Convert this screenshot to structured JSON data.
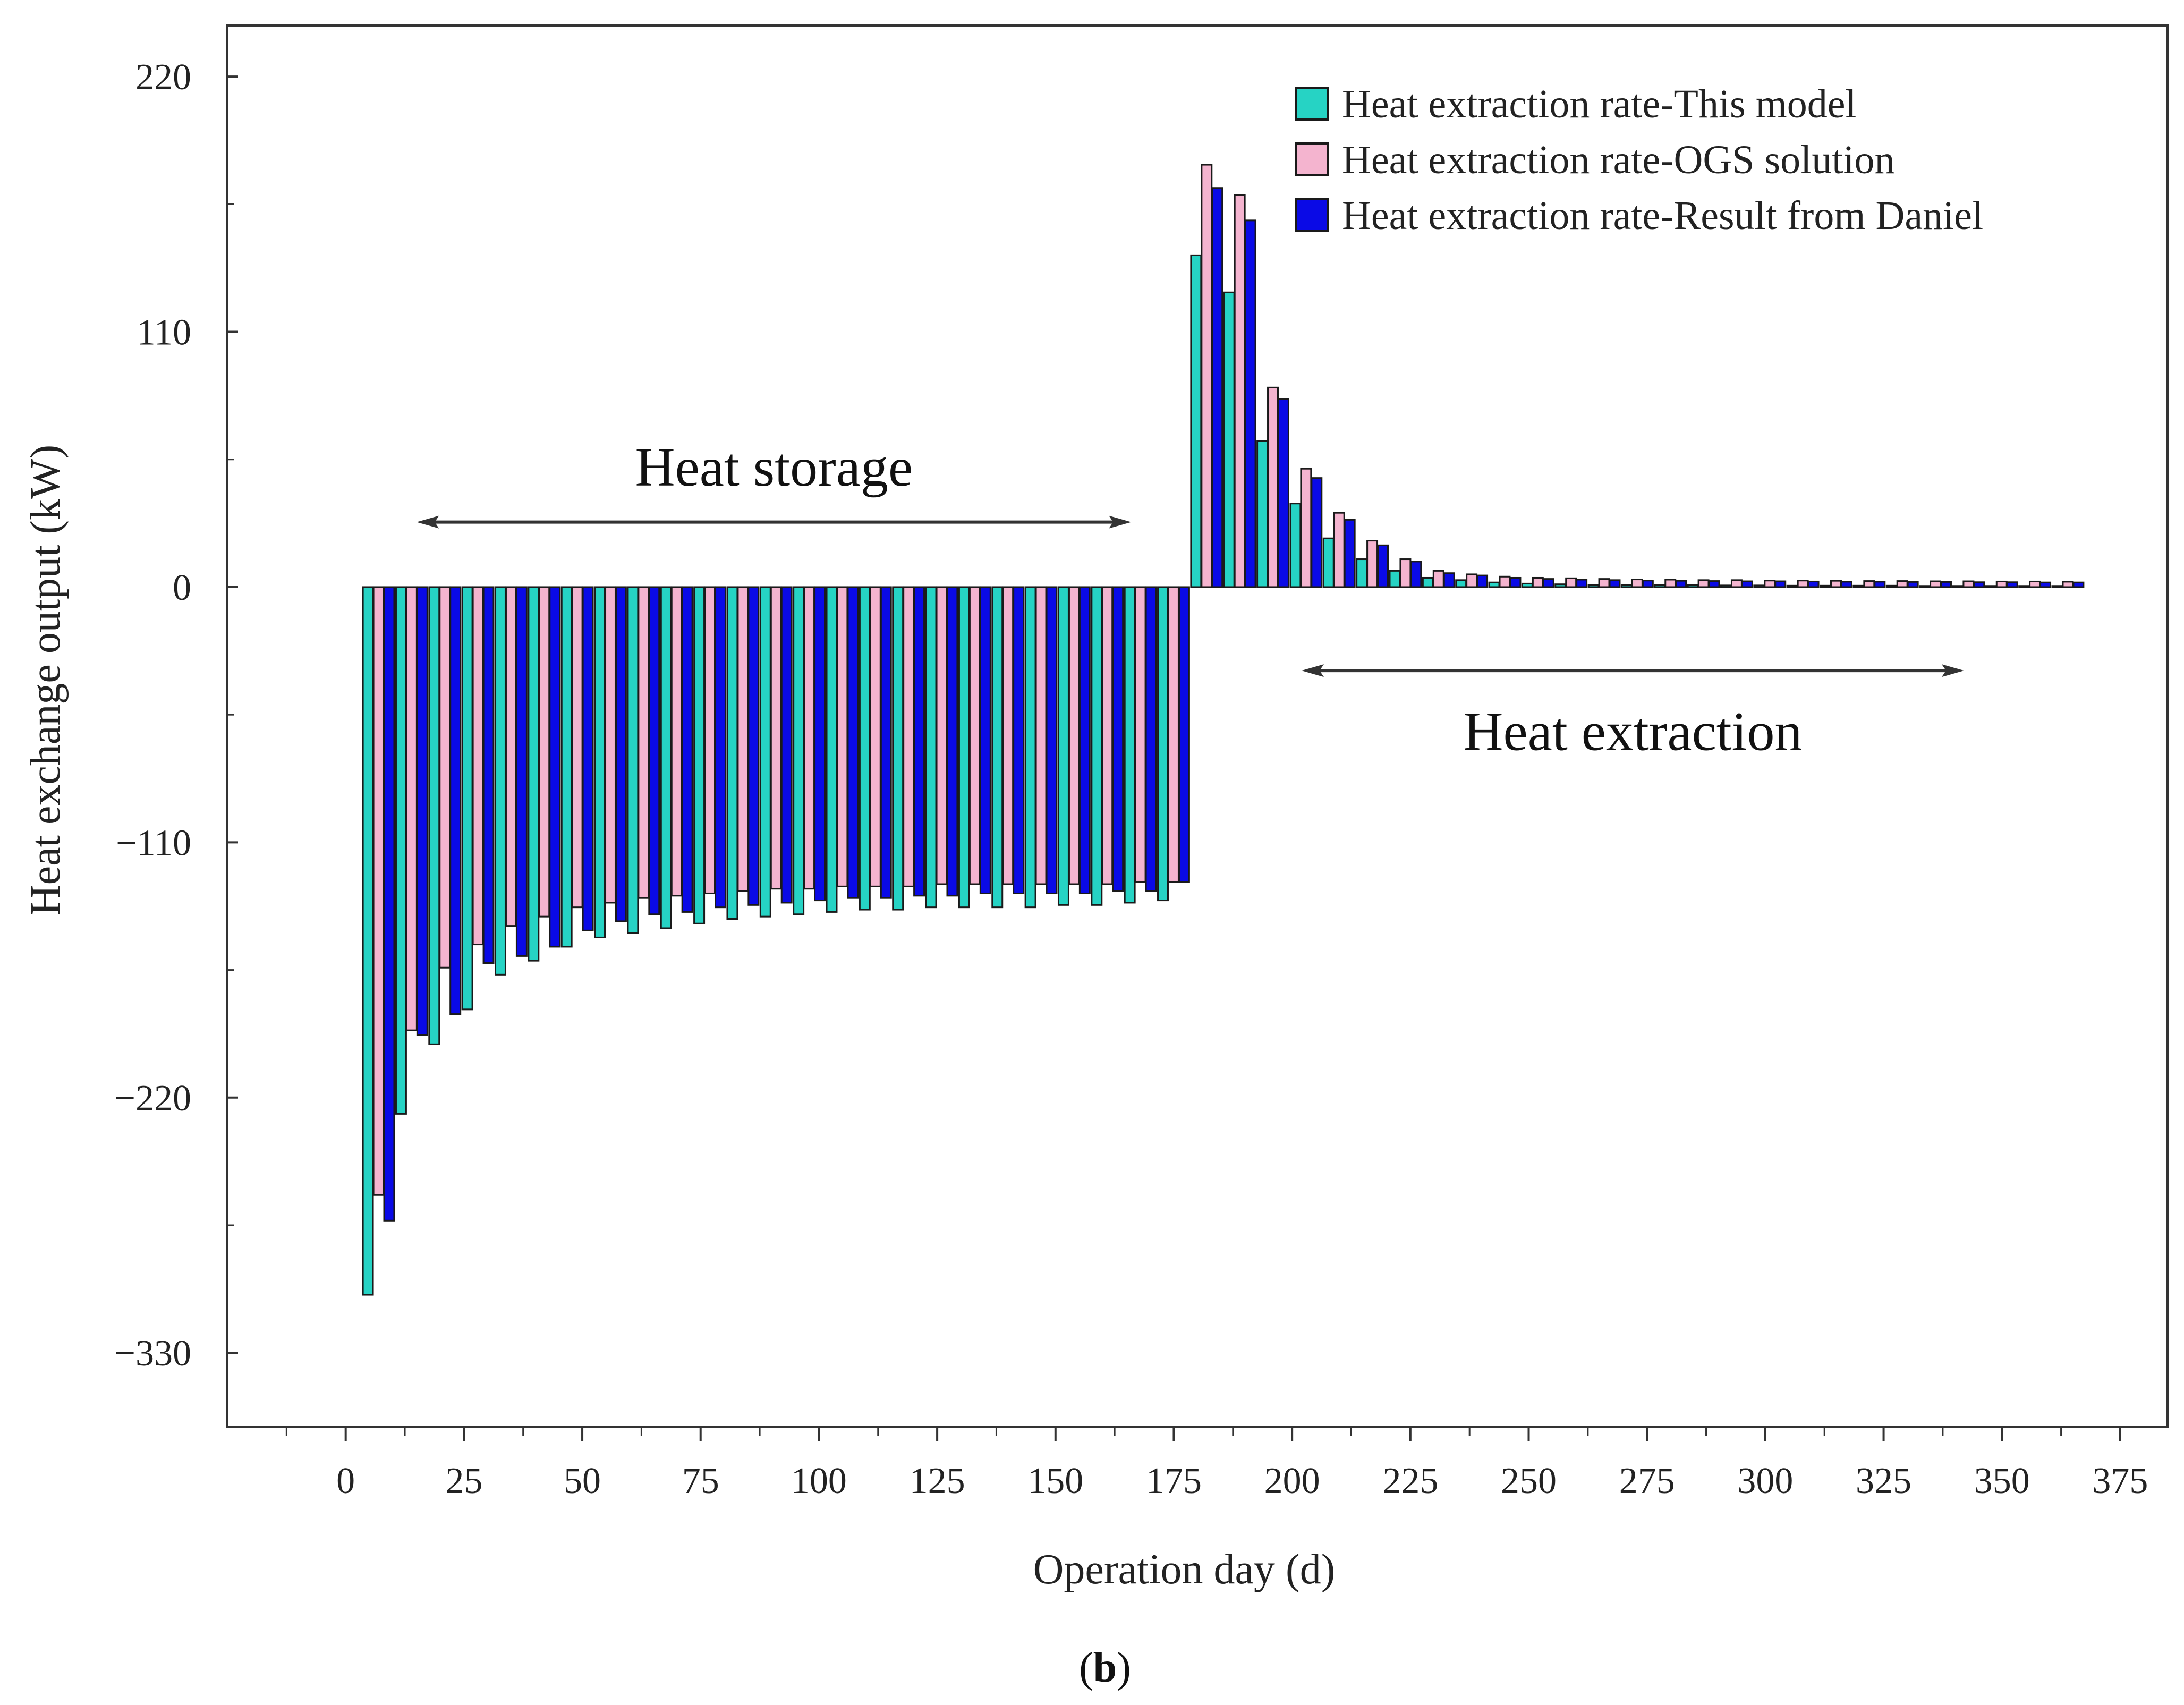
{
  "chart_data": {
    "type": "bar",
    "title": "",
    "xlabel": "Operation day (d)",
    "ylabel": "Heat exchange output (kW)",
    "xlim": [
      -25,
      385
    ],
    "ylim": [
      -362,
      242
    ],
    "x_ticks": [
      0,
      25,
      50,
      75,
      100,
      125,
      150,
      175,
      200,
      225,
      250,
      275,
      300,
      325,
      350,
      375
    ],
    "x_tick_labels": [
      "0",
      "25",
      "50",
      "75",
      "100",
      "125",
      "150",
      "175",
      "200",
      "225",
      "250",
      "275",
      "300",
      "325",
      "350",
      "375"
    ],
    "y_ticks": [
      220,
      110,
      0,
      -110,
      -220,
      -330
    ],
    "y_tick_labels": [
      "220",
      "110",
      "0",
      "−110",
      "−220",
      "−330"
    ],
    "grid": false,
    "legend_position": "top-right",
    "x": [
      7,
      14,
      21,
      28,
      35,
      42,
      49,
      56,
      63,
      70,
      77,
      84,
      91,
      98,
      105,
      112,
      119,
      126,
      133,
      140,
      147,
      154,
      161,
      168,
      175,
      182,
      189,
      196,
      203,
      210,
      217,
      224,
      231,
      238,
      245,
      252,
      259,
      266,
      273,
      280,
      287,
      294,
      301,
      308,
      315,
      322,
      329,
      336,
      343,
      350,
      357,
      364
    ],
    "series": [
      {
        "name": "Heat extraction rate-This model",
        "color": "#26d3c4",
        "values": [
          -305,
          -227,
          -197,
          -182,
          -167,
          -161,
          -155,
          -151,
          -149,
          -147,
          -145,
          -143,
          -142,
          -141,
          -140,
          -139,
          -139,
          -138,
          -138,
          -138,
          -138,
          -137,
          -137,
          -136,
          -135,
          143,
          127,
          63,
          36,
          21,
          12,
          7,
          4,
          3,
          2,
          1.5,
          1.2,
          1.0,
          1.0,
          0.8,
          0.8,
          0.7,
          0.7,
          0.6,
          0.6,
          0.6,
          0.6,
          0.5,
          0.5,
          0.5,
          0.5,
          0.5
        ]
      },
      {
        "name": "Heat extraction rate-OGS solution",
        "color": "#f4b4cf",
        "values": [
          -262,
          -191,
          -164,
          -154,
          -146,
          -142,
          -138,
          -136,
          -134,
          -133,
          -132,
          -131,
          -130,
          -130,
          -129,
          -129,
          -129,
          -128,
          -128,
          -128,
          -128,
          -128,
          -128,
          -127,
          -127,
          182,
          169,
          86,
          51,
          32,
          20,
          12,
          7,
          5.5,
          4.5,
          4,
          3.8,
          3.5,
          3.3,
          3.2,
          3.0,
          3.0,
          2.8,
          2.8,
          2.7,
          2.6,
          2.6,
          2.5,
          2.5,
          2.4,
          2.4,
          2.3
        ]
      },
      {
        "name": "Heat extraction rate-Result from Daniel",
        "color": "#0a0ae6",
        "values": [
          -273,
          -193,
          -184,
          -162,
          -159,
          -155,
          -148,
          -144,
          -141,
          -140,
          -138,
          -137,
          -136,
          -135,
          -134,
          -134,
          -133,
          -133,
          -132,
          -132,
          -132,
          -132,
          -131,
          -131,
          -127,
          172,
          158,
          81,
          47,
          29,
          18,
          11,
          6,
          5,
          4,
          3.5,
          3.2,
          3.0,
          2.8,
          2.7,
          2.6,
          2.5,
          2.5,
          2.4,
          2.3,
          2.3,
          2.2,
          2.2,
          2.1,
          2.1,
          2.0,
          2.0
        ]
      }
    ],
    "annotations": [
      {
        "text": "Heat storage",
        "arrow_from_day": 15,
        "arrow_to_day": 166,
        "arrow_value": 28,
        "text_value": 52
      },
      {
        "text": "Heat extraction",
        "arrow_from_day": 202,
        "arrow_to_day": 342,
        "arrow_value": -36,
        "text_value": -62
      }
    ]
  },
  "caption": {
    "open": "(",
    "letter": "b",
    "close": ")"
  }
}
